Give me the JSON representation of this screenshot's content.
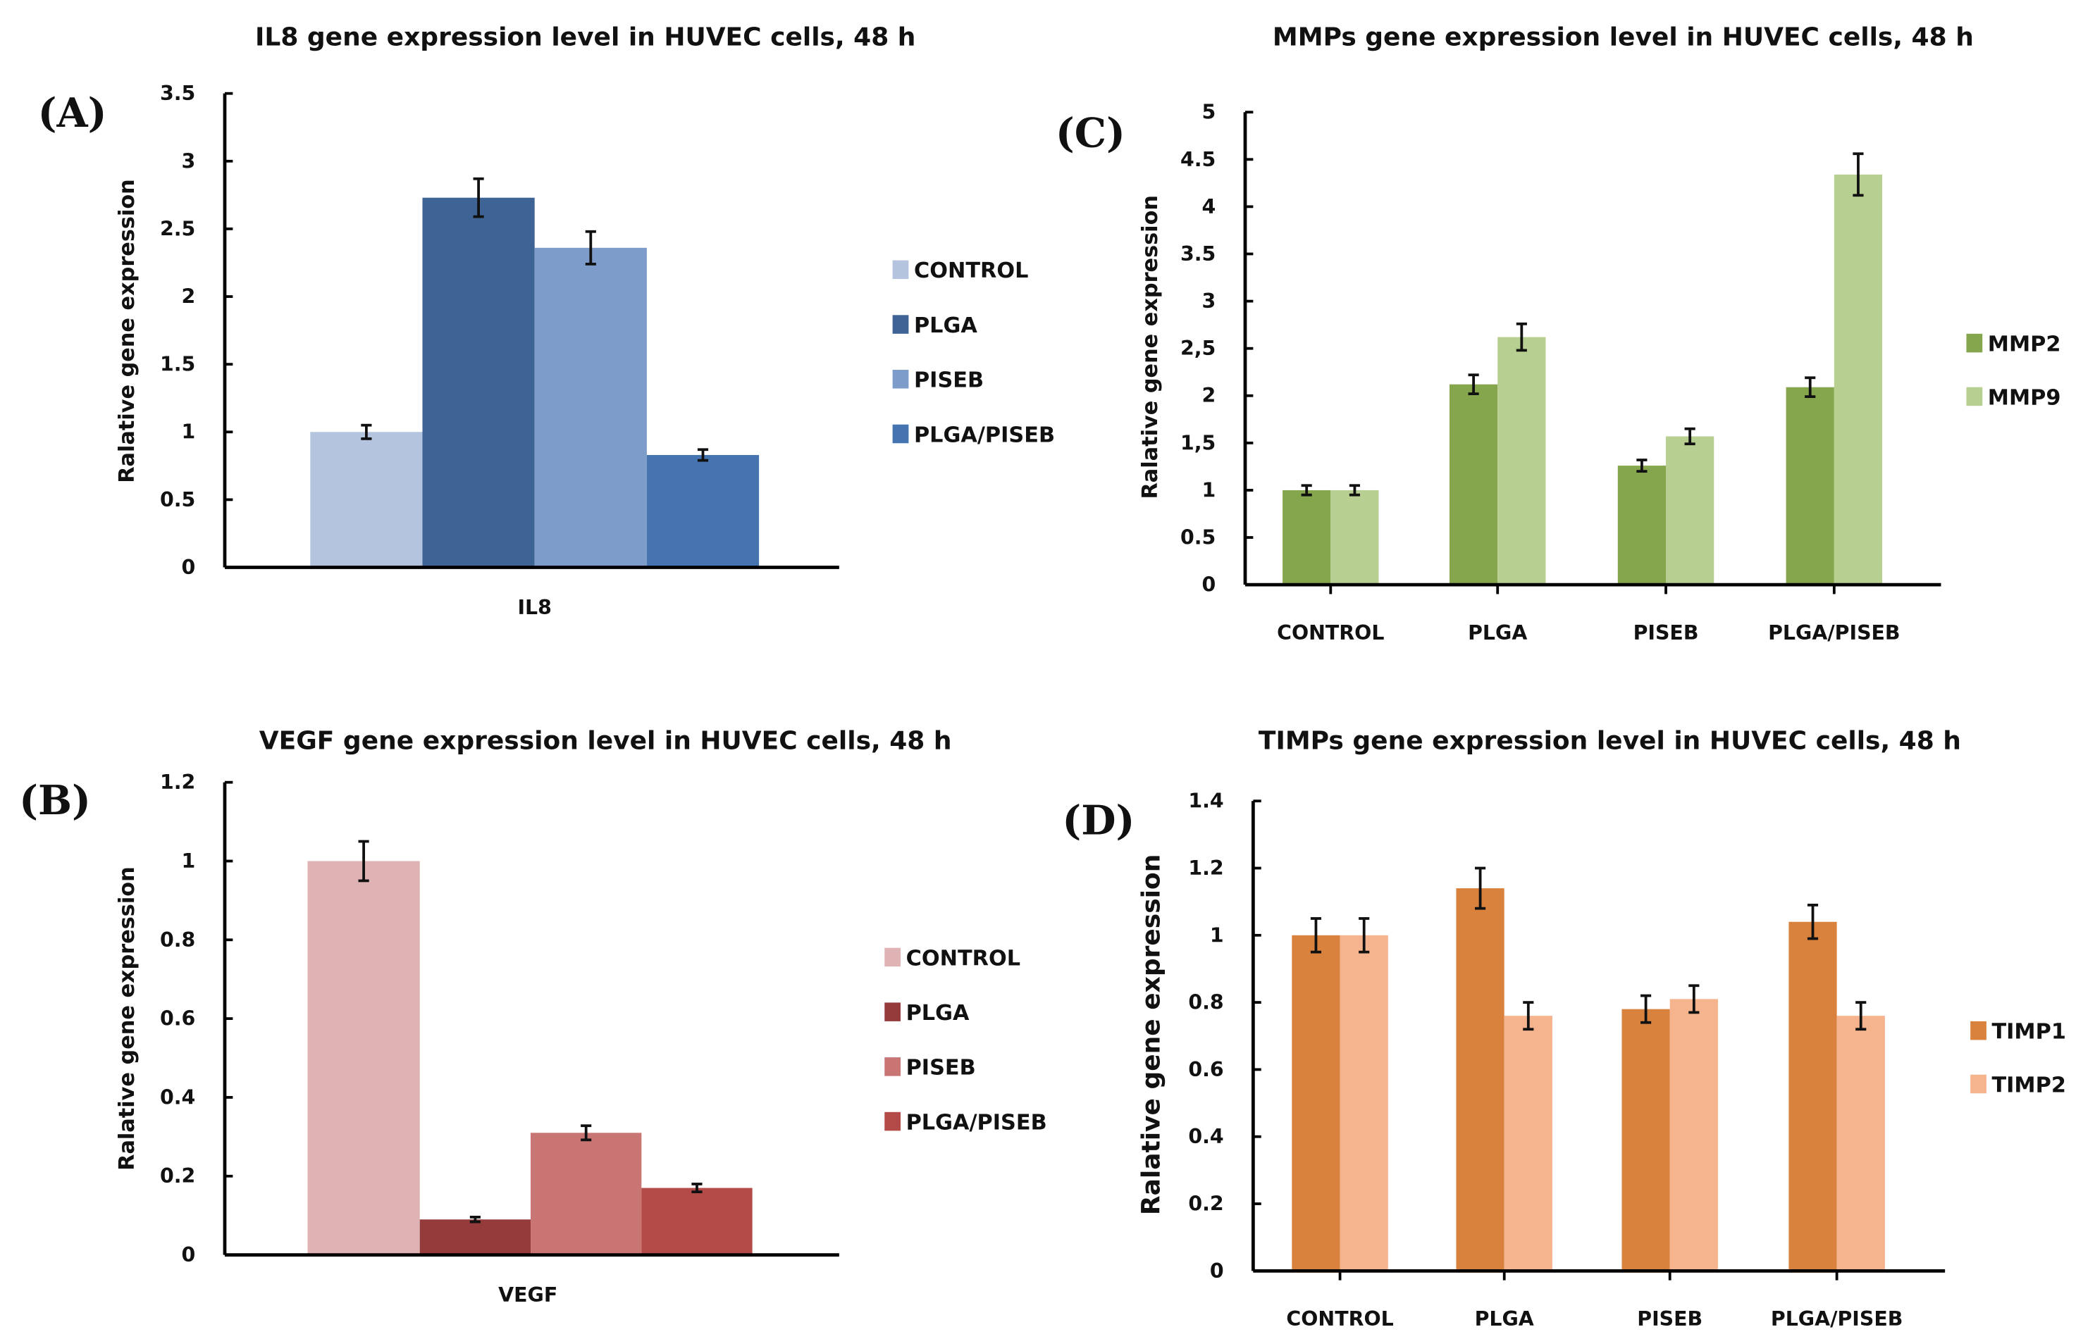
{
  "chart_data": [
    {
      "panel": "(A)",
      "type": "bar",
      "title": "IL8 gene expression level in HUVEC cells, 48 h",
      "xlabel": "",
      "ylabel": "Ralative gene expression",
      "ylim": [
        0,
        3.5
      ],
      "yticks": [
        "0",
        "0.5",
        "1",
        "1.5",
        "2",
        "2.5",
        "3",
        "3.5"
      ],
      "categories": [
        "IL8"
      ],
      "series": [
        {
          "name": "CONTROL",
          "color": "#b4c4df",
          "values": [
            1.0
          ],
          "errors": [
            0.05
          ]
        },
        {
          "name": "PLGA",
          "color": "#3d6494",
          "values": [
            2.73
          ],
          "errors": [
            0.14
          ]
        },
        {
          "name": "PISEB",
          "color": "#7e9cc9",
          "values": [
            2.36
          ],
          "errors": [
            0.12
          ]
        },
        {
          "name": "PLGA/PISEB",
          "color": "#4674b0",
          "values": [
            0.83
          ],
          "errors": [
            0.04
          ]
        }
      ],
      "legend": "right"
    },
    {
      "panel": "(B)",
      "type": "bar",
      "title": "VEGF gene expression level in HUVEC cells, 48 h",
      "xlabel": "",
      "ylabel": "Ralative gene expression",
      "ylim": [
        0,
        1.2
      ],
      "yticks": [
        "0",
        "0.2",
        "0.4",
        "0.6",
        "0.8",
        "1",
        "1.2"
      ],
      "categories": [
        "VEGF"
      ],
      "series": [
        {
          "name": "CONTROL",
          "color": "#dfb3b3",
          "values": [
            1.0
          ],
          "errors": [
            0.05
          ]
        },
        {
          "name": "PLGA",
          "color": "#963b3b",
          "values": [
            0.09
          ],
          "errors": [
            0.006
          ]
        },
        {
          "name": "PISEB",
          "color": "#c87574",
          "values": [
            0.31
          ],
          "errors": [
            0.018
          ]
        },
        {
          "name": "PLGA/PISEB",
          "color": "#b34a47",
          "values": [
            0.17
          ],
          "errors": [
            0.01
          ]
        }
      ],
      "legend": "right"
    },
    {
      "panel": "(C)",
      "type": "bar",
      "title": "MMPs gene expression level in HUVEC cells, 48 h",
      "xlabel": "",
      "ylabel": "Ralative gene expression",
      "ylim": [
        0,
        5
      ],
      "yticks": [
        "0",
        "0.5",
        "1",
        "1,5",
        "2",
        "2,5",
        "3",
        "3.5",
        "4",
        "4.5",
        "5"
      ],
      "categories": [
        "CONTROL",
        "PLGA",
        "PISEB",
        "PLGA/PISEB"
      ],
      "series": [
        {
          "name": "MMP2",
          "color": "#86a64d",
          "values": [
            1.0,
            2.12,
            1.26,
            2.09
          ],
          "errors": [
            0.05,
            0.1,
            0.06,
            0.1
          ]
        },
        {
          "name": "MMP9",
          "color": "#b8cf92",
          "values": [
            1.0,
            2.62,
            1.57,
            4.34
          ],
          "errors": [
            0.05,
            0.14,
            0.08,
            0.22
          ]
        }
      ],
      "legend": "right"
    },
    {
      "panel": "(D)",
      "type": "bar",
      "title": "TIMPs gene expression level in HUVEC cells, 48 h",
      "xlabel": "",
      "ylabel": "Ralative gene expression",
      "ylim": [
        0,
        1.4
      ],
      "yticks": [
        "0",
        "0.2",
        "0.4",
        "0.6",
        "0.8",
        "1",
        "1.2",
        "1.4"
      ],
      "categories": [
        "CONTROL",
        "PLGA",
        "PISEB",
        "PLGA/PISEB"
      ],
      "series": [
        {
          "name": "TIMP1",
          "color": "#d9823e",
          "values": [
            1.0,
            1.14,
            0.78,
            1.04
          ],
          "errors": [
            0.05,
            0.06,
            0.04,
            0.05
          ]
        },
        {
          "name": "TIMP2",
          "color": "#f6b48e",
          "values": [
            1.0,
            0.76,
            0.81,
            0.76
          ],
          "errors": [
            0.05,
            0.04,
            0.04,
            0.04
          ]
        }
      ],
      "legend": "right"
    }
  ]
}
